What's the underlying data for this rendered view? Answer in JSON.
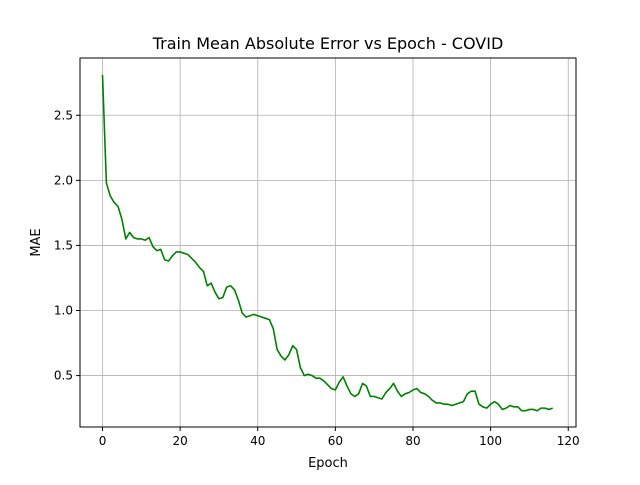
{
  "chart_data": {
    "type": "line",
    "title": "Train Mean Absolute Error vs Epoch - COVID",
    "xlabel": "Epoch",
    "ylabel": "MAE",
    "xlim": [
      -5.8,
      122
    ],
    "ylim": [
      0.105,
      2.94
    ],
    "xticks": [
      0,
      20,
      40,
      60,
      80,
      100,
      120
    ],
    "yticks": [
      0.5,
      1.0,
      1.5,
      2.0,
      2.5
    ],
    "xtick_labels": [
      "0",
      "20",
      "40",
      "60",
      "80",
      "100",
      "120"
    ],
    "ytick_labels": [
      "0.5",
      "1.0",
      "1.5",
      "2.0",
      "2.5"
    ],
    "grid": true,
    "legend": "none",
    "series": [
      {
        "color": "#008000",
        "x": [
          0,
          1,
          2,
          3,
          4,
          5,
          6,
          7,
          8,
          9,
          10,
          11,
          12,
          13,
          14,
          15,
          16,
          17,
          18,
          19,
          20,
          21,
          22,
          23,
          24,
          25,
          26,
          27,
          28,
          29,
          30,
          31,
          32,
          33,
          34,
          35,
          36,
          37,
          38,
          39,
          40,
          41,
          42,
          43,
          44,
          45,
          46,
          47,
          48,
          49,
          50,
          51,
          52,
          53,
          54,
          55,
          56,
          57,
          58,
          59,
          60,
          61,
          62,
          63,
          64,
          65,
          66,
          67,
          68,
          69,
          70,
          71,
          72,
          73,
          74,
          75,
          76,
          77,
          78,
          79,
          80,
          81,
          82,
          83,
          84,
          85,
          86,
          87,
          88,
          89,
          90,
          91,
          92,
          93,
          94,
          95,
          96,
          97,
          98,
          99,
          100,
          101,
          102,
          103,
          104,
          105,
          106,
          107,
          108,
          109,
          110,
          111,
          112,
          113,
          114,
          115,
          116
        ],
        "values": [
          2.81,
          1.98,
          1.88,
          1.83,
          1.8,
          1.7,
          1.55,
          1.6,
          1.56,
          1.55,
          1.55,
          1.54,
          1.56,
          1.49,
          1.46,
          1.47,
          1.39,
          1.38,
          1.42,
          1.45,
          1.45,
          1.44,
          1.43,
          1.4,
          1.37,
          1.33,
          1.3,
          1.19,
          1.21,
          1.14,
          1.09,
          1.1,
          1.18,
          1.19,
          1.16,
          1.08,
          0.98,
          0.95,
          0.96,
          0.97,
          0.96,
          0.95,
          0.94,
          0.93,
          0.86,
          0.7,
          0.65,
          0.62,
          0.66,
          0.73,
          0.7,
          0.56,
          0.5,
          0.51,
          0.5,
          0.48,
          0.48,
          0.46,
          0.43,
          0.4,
          0.39,
          0.45,
          0.49,
          0.42,
          0.36,
          0.34,
          0.36,
          0.44,
          0.42,
          0.34,
          0.34,
          0.33,
          0.32,
          0.37,
          0.4,
          0.44,
          0.38,
          0.34,
          0.36,
          0.37,
          0.39,
          0.4,
          0.37,
          0.36,
          0.34,
          0.31,
          0.29,
          0.29,
          0.28,
          0.28,
          0.27,
          0.28,
          0.29,
          0.3,
          0.36,
          0.38,
          0.38,
          0.28,
          0.26,
          0.25,
          0.28,
          0.3,
          0.28,
          0.24,
          0.25,
          0.27,
          0.26,
          0.26,
          0.23,
          0.23,
          0.24,
          0.24,
          0.23,
          0.25,
          0.25,
          0.24,
          0.25
        ]
      }
    ]
  }
}
